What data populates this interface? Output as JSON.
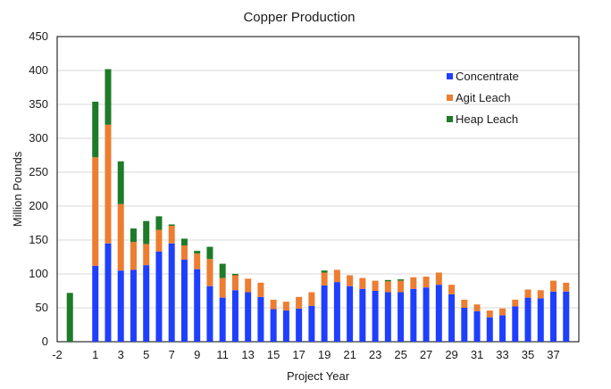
{
  "chart_data": {
    "type": "bar",
    "stacked": true,
    "title": "Copper Production",
    "xlabel": "Project Year",
    "ylabel": "Million Pounds",
    "ylim": [
      0,
      450
    ],
    "yticks": [
      0,
      50,
      100,
      150,
      200,
      250,
      300,
      350,
      400,
      450
    ],
    "xlim": [
      -2,
      39
    ],
    "xticks": [
      -2,
      1,
      3,
      5,
      7,
      9,
      11,
      13,
      15,
      17,
      19,
      21,
      23,
      25,
      27,
      29,
      31,
      33,
      35,
      37
    ],
    "grid": "horizontal",
    "legend_position": "right",
    "categories": [
      -1,
      1,
      2,
      3,
      4,
      5,
      6,
      7,
      8,
      9,
      10,
      11,
      12,
      13,
      14,
      15,
      16,
      17,
      18,
      19,
      20,
      21,
      22,
      23,
      24,
      25,
      26,
      27,
      28,
      29,
      30,
      31,
      32,
      33,
      34,
      35,
      36,
      37,
      38
    ],
    "series": [
      {
        "name": "Concentrate",
        "color": "#1f3fff",
        "values": [
          0,
          112,
          145,
          105,
          106,
          113,
          133,
          145,
          121,
          107,
          82,
          65,
          76,
          73,
          66,
          48,
          46,
          49,
          53,
          83,
          88,
          82,
          78,
          75,
          73,
          73,
          78,
          80,
          84,
          70,
          50,
          45,
          36,
          39,
          52,
          65,
          64,
          74,
          74
        ]
      },
      {
        "name": "Agit Leach",
        "color": "#ed7d31",
        "values": [
          0,
          160,
          175,
          98,
          41,
          31,
          32,
          26,
          21,
          23,
          40,
          29,
          22,
          20,
          21,
          14,
          13,
          17,
          20,
          19,
          18,
          16,
          16,
          15,
          16,
          17,
          17,
          16,
          18,
          14,
          12,
          10,
          10,
          10,
          10,
          12,
          12,
          16,
          13
        ]
      },
      {
        "name": "Heap Leach",
        "color": "#1e7b28",
        "values": [
          72,
          82,
          82,
          63,
          20,
          34,
          20,
          2,
          10,
          4,
          18,
          21,
          2,
          0,
          0,
          0,
          0,
          0,
          0,
          3,
          0,
          0,
          0,
          0,
          2,
          2,
          0,
          0,
          0,
          0,
          0,
          0,
          0,
          0,
          0,
          0,
          0,
          0,
          0
        ]
      }
    ]
  }
}
